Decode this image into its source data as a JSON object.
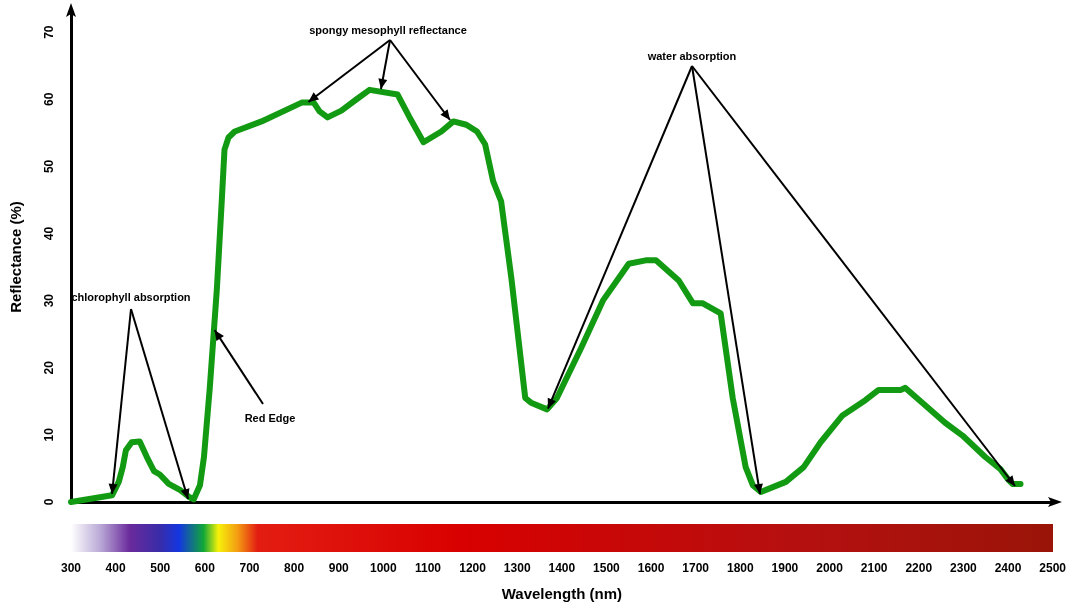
{
  "chart_data": {
    "type": "line",
    "xlabel": "Wavelength (nm)",
    "ylabel": "Reflectance (%)",
    "xlim": [
      300,
      2500
    ],
    "xticks": [
      300,
      400,
      500,
      600,
      700,
      800,
      900,
      1000,
      1100,
      1200,
      1300,
      1400,
      1500,
      1600,
      1700,
      1800,
      1900,
      2000,
      2100,
      2200,
      2300,
      2400,
      2500
    ],
    "ylim": [
      0,
      73
    ],
    "yticks": [
      0,
      10,
      20,
      30,
      40,
      50,
      60,
      70
    ],
    "grid": false,
    "marker": "none",
    "line_style": "solid",
    "series": [
      {
        "color": "#139a13",
        "x": [
          300,
          392,
          407,
          416,
          423,
          436,
          454,
          470,
          486,
          499,
          519,
          544,
          566,
          575,
          589,
          598,
          611,
          627,
          638,
          644,
          653,
          667,
          727,
          817,
          844,
          857,
          875,
          906,
          940,
          969,
          1032,
          1058,
          1090,
          1130,
          1157,
          1186,
          1210,
          1228,
          1246,
          1264,
          1287,
          1318,
          1331,
          1367,
          1389,
          1443,
          1492,
          1550,
          1588,
          1611,
          1662,
          1694,
          1716,
          1756,
          1783,
          1812,
          1828,
          1846,
          1902,
          1942,
          1980,
          2029,
          2081,
          2110,
          2159,
          2170,
          2259,
          2298,
          2349,
          2383,
          2401,
          2410,
          2428
        ],
        "values": [
          0,
          1.0,
          3,
          5.2,
          7.7,
          8.9,
          9.0,
          6.7,
          4.6,
          4.1,
          2.7,
          1.8,
          0.7,
          0.4,
          2.5,
          6.7,
          17,
          31.8,
          45,
          52.5,
          54.3,
          55.2,
          56.7,
          59.5,
          59.5,
          58.2,
          57.3,
          58.3,
          60,
          61.4,
          60.7,
          57.4,
          53.6,
          55.2,
          56.7,
          56.2,
          55.2,
          53.3,
          47.8,
          44.8,
          33.3,
          15.5,
          14.8,
          13.8,
          15.5,
          22.9,
          30,
          35.5,
          36,
          36,
          33,
          29.6,
          29.6,
          28.1,
          15.5,
          5.2,
          2.5,
          1.5,
          3,
          5.2,
          8.9,
          12.9,
          15.2,
          16.7,
          16.7,
          17,
          11.8,
          9.9,
          6.7,
          4.9,
          3.3,
          2.7,
          2.7
        ]
      }
    ],
    "annotations": [
      {
        "text": "spongy mesophyll reflectance",
        "x": 832,
        "y": 59.6
      },
      {
        "text": "water absorption",
        "x": 1369,
        "y": 13.9
      },
      {
        "text": "chlorophyll absorption",
        "x": 392,
        "y": 1.2
      },
      {
        "text": "Red Edge",
        "x": 622,
        "y": 25.6
      }
    ]
  }
}
